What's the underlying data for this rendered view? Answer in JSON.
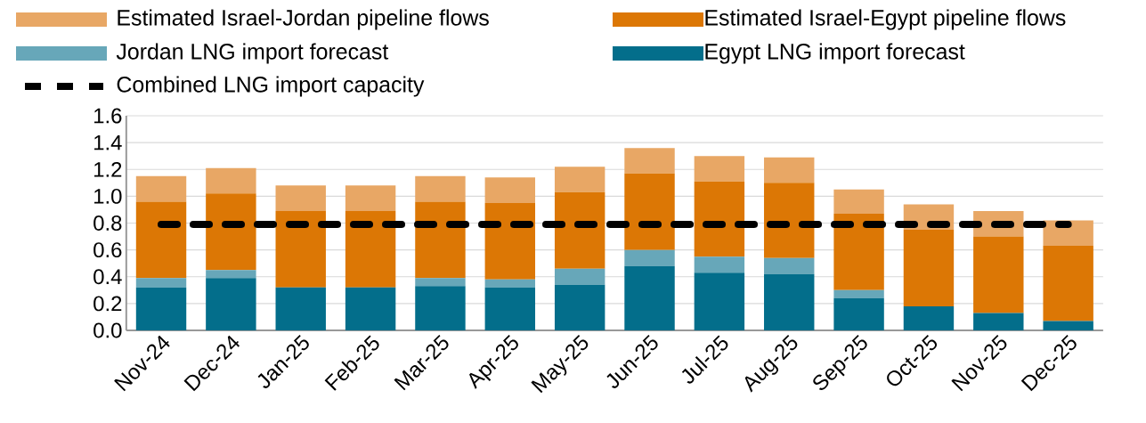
{
  "chart_data": {
    "type": "bar",
    "stacked": true,
    "categories": [
      "Nov-24",
      "Dec-24",
      "Jan-25",
      "Feb-25",
      "Mar-25",
      "Apr-25",
      "May-25",
      "Jun-25",
      "Jul-25",
      "Aug-25",
      "Sep-25",
      "Oct-25",
      "Nov-25",
      "Dec-25"
    ],
    "series": [
      {
        "name": "Egypt LNG import forecast",
        "color": "#036e8b",
        "values": [
          0.32,
          0.39,
          0.32,
          0.32,
          0.33,
          0.32,
          0.34,
          0.48,
          0.43,
          0.42,
          0.24,
          0.18,
          0.13,
          0.07
        ]
      },
      {
        "name": "Jordan LNG import forecast",
        "color": "#67a7b9",
        "values": [
          0.07,
          0.06,
          0,
          0,
          0.06,
          0.06,
          0.12,
          0.12,
          0.12,
          0.12,
          0.06,
          0,
          0,
          0
        ]
      },
      {
        "name": "Estimated Israel-Egypt pipeline flows",
        "color": "#dc7705",
        "values": [
          0.57,
          0.57,
          0.57,
          0.57,
          0.57,
          0.57,
          0.57,
          0.57,
          0.56,
          0.56,
          0.57,
          0.57,
          0.57,
          0.56
        ]
      },
      {
        "name": "Estimated Israel-Jordan pipeline flows",
        "color": "#e8a765",
        "values": [
          0.19,
          0.19,
          0.19,
          0.19,
          0.19,
          0.19,
          0.19,
          0.19,
          0.19,
          0.19,
          0.18,
          0.19,
          0.19,
          0.19
        ]
      },
      {
        "name": "Combined LNG import capacity",
        "type": "line",
        "line_style": "dashed",
        "color": "#000000",
        "values": [
          0.79,
          0.79,
          0.79,
          0.79,
          0.79,
          0.79,
          0.79,
          0.79,
          0.79,
          0.79,
          0.79,
          0.79,
          0.79,
          0.79
        ]
      }
    ],
    "ylim": [
      0,
      1.6
    ],
    "yticks": [
      {
        "value": 0,
        "label": "0.0"
      },
      {
        "value": 0.2,
        "label": "0.2"
      },
      {
        "value": 0.4,
        "label": "0.4"
      },
      {
        "value": 0.6,
        "label": "0.6"
      },
      {
        "value": 0.8,
        "label": "0.8"
      },
      {
        "value": 1.0,
        "label": "1.0"
      },
      {
        "value": 1.2,
        "label": "1.2"
      },
      {
        "value": 1.4,
        "label": "1.4"
      },
      {
        "value": 1.6,
        "label": "1.6"
      }
    ],
    "grid": "y",
    "legend": "top"
  }
}
